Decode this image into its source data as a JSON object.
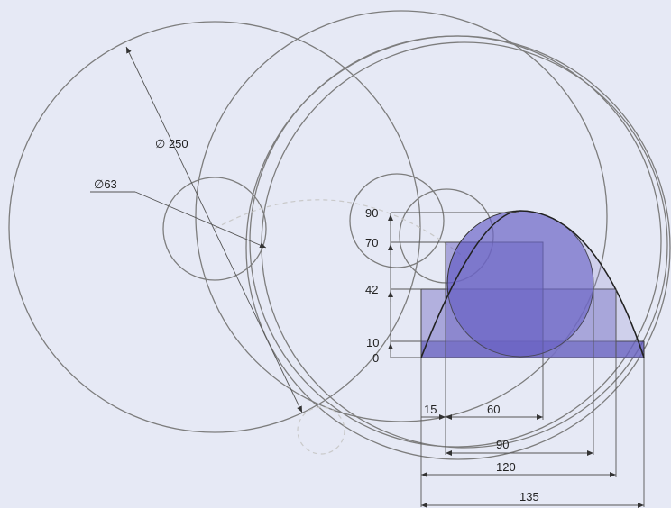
{
  "diameters": {
    "large": {
      "label": "∅ 250",
      "value": 250
    },
    "small": {
      "label": "∅63",
      "value": 63
    }
  },
  "vertical_dims": [
    {
      "label": "90",
      "value": 90
    },
    {
      "label": "70",
      "value": 70
    },
    {
      "label": "42",
      "value": 42
    },
    {
      "label": "10",
      "value": 10
    },
    {
      "label": "0",
      "value": 0
    }
  ],
  "horizontal_dims": [
    {
      "label": "15",
      "value": 15
    },
    {
      "label": "60",
      "value": 60
    },
    {
      "label": "90",
      "value": 90
    },
    {
      "label": "120",
      "value": 120
    },
    {
      "label": "135",
      "value": 135
    }
  ],
  "colors": {
    "background": "#e6e9f5",
    "shape_fill": "#5a52b8",
    "circle_fill": "#5a52c2",
    "outline": "#7d7d7d"
  }
}
